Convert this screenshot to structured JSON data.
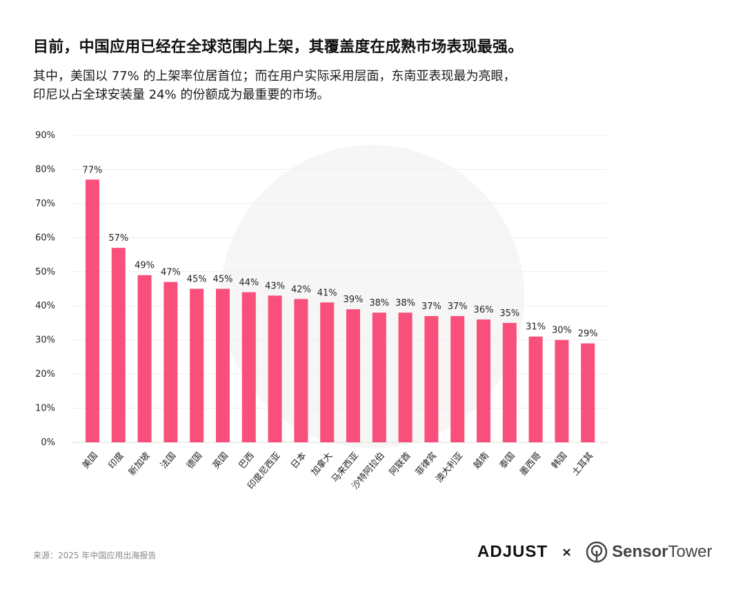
{
  "header": {
    "title": "目前，中国应用已经在全球范围内上架，其覆盖度在成熟市场表现最强。",
    "subtitle_line1": "其中，美国以 77% 的上架率位居首位；而在用户实际采用层面，东南亚表现最为亮眼，",
    "subtitle_line2": "印尼以占全球安装量 24% 的份额成为最重要的市场。"
  },
  "chart_data": {
    "type": "bar",
    "categories": [
      "美国",
      "印度",
      "新加坡",
      "法国",
      "德国",
      "英国",
      "巴西",
      "印度尼西亚",
      "日本",
      "加拿大",
      "马来西亚",
      "沙特阿拉伯",
      "阿联酋",
      "菲律宾",
      "澳大利亚",
      "越南",
      "泰国",
      "墨西哥",
      "韩国",
      "土耳其"
    ],
    "values": [
      77,
      57,
      49,
      47,
      45,
      45,
      44,
      43,
      42,
      41,
      39,
      38,
      38,
      37,
      37,
      36,
      35,
      31,
      30,
      29
    ],
    "data_labels": [
      "77%",
      "57%",
      "49%",
      "47%",
      "45%",
      "45%",
      "44%",
      "43%",
      "42%",
      "41%",
      "39%",
      "38%",
      "38%",
      "37%",
      "37%",
      "36%",
      "35%",
      "31%",
      "30%",
      "29%"
    ],
    "y_ticks": [
      "0%",
      "10%",
      "20%",
      "30%",
      "40%",
      "50%",
      "60%",
      "70%",
      "80%",
      "90%"
    ],
    "ylim": [
      0,
      90
    ],
    "grid": true,
    "bar_color": "#f94f7b",
    "title": "",
    "xlabel": "",
    "ylabel": ""
  },
  "footer": {
    "source": "来源：2025 年中国应用出海报告",
    "logo_adjust": "ADJUST",
    "logo_separator": "×",
    "logo_sensor": "Sensor",
    "logo_tower": "Tower"
  }
}
